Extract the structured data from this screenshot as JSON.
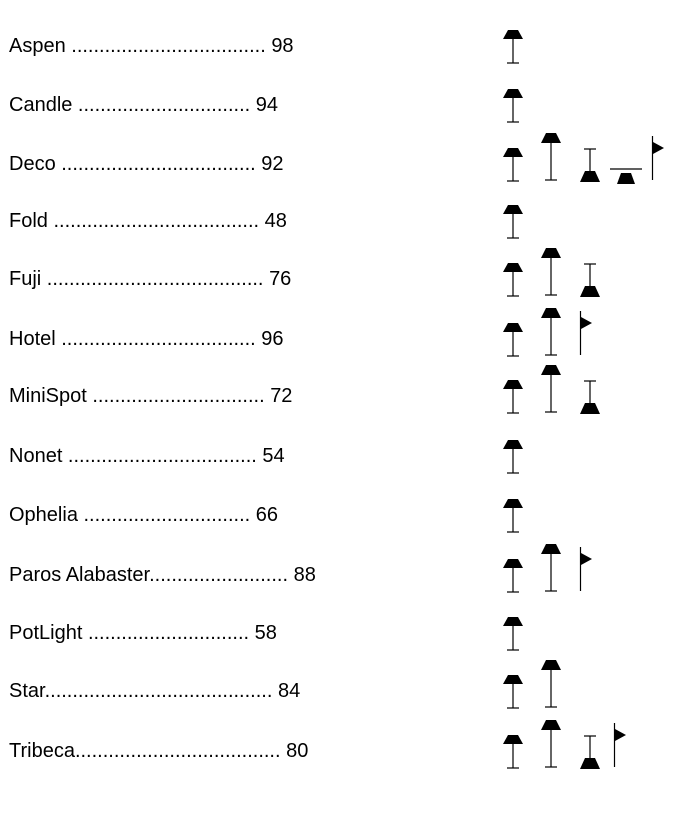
{
  "entries": [
    {
      "label": "Aspen ...................................",
      "page": "98",
      "icons": [
        "table-lamp"
      ]
    },
    {
      "label": "Candle ...............................",
      "page": "94",
      "icons": [
        "table-lamp"
      ]
    },
    {
      "label": "Deco ...................................",
      "page": "92",
      "icons": [
        "table-lamp",
        "floor-lamp",
        "ceiling-lamp",
        "pendant-lamp",
        "wall-lamp"
      ]
    },
    {
      "label": "Fold .....................................",
      "page": "48",
      "icons": [
        "table-lamp"
      ]
    },
    {
      "label": "Fuji .......................................",
      "page": "76",
      "icons": [
        "table-lamp",
        "floor-lamp",
        "ceiling-lamp"
      ]
    },
    {
      "label": "Hotel ...................................",
      "page": "96",
      "icons": [
        "table-lamp",
        "floor-lamp",
        "wall-lamp"
      ]
    },
    {
      "label": "MiniSpot ...............................",
      "page": "72",
      "icons": [
        "table-lamp",
        "floor-lamp",
        "ceiling-lamp"
      ]
    },
    {
      "label": "Nonet ..................................",
      "page": "54",
      "icons": [
        "table-lamp"
      ]
    },
    {
      "label": "Ophelia ..............................",
      "page": "66",
      "icons": [
        "table-lamp"
      ]
    },
    {
      "label": "Paros Alabaster.........................",
      "page": "88",
      "icons": [
        "table-lamp",
        "floor-lamp",
        "wall-lamp"
      ]
    },
    {
      "label": "PotLight .............................",
      "page": "58",
      "icons": [
        "table-lamp"
      ]
    },
    {
      "label": "Star.........................................",
      "page": "84",
      "icons": [
        "table-lamp",
        "floor-lamp"
      ]
    },
    {
      "label": "Tribeca.....................................",
      "page": "80",
      "icons": [
        "table-lamp",
        "floor-lamp",
        "ceiling-lamp",
        "wall-lamp"
      ]
    }
  ]
}
